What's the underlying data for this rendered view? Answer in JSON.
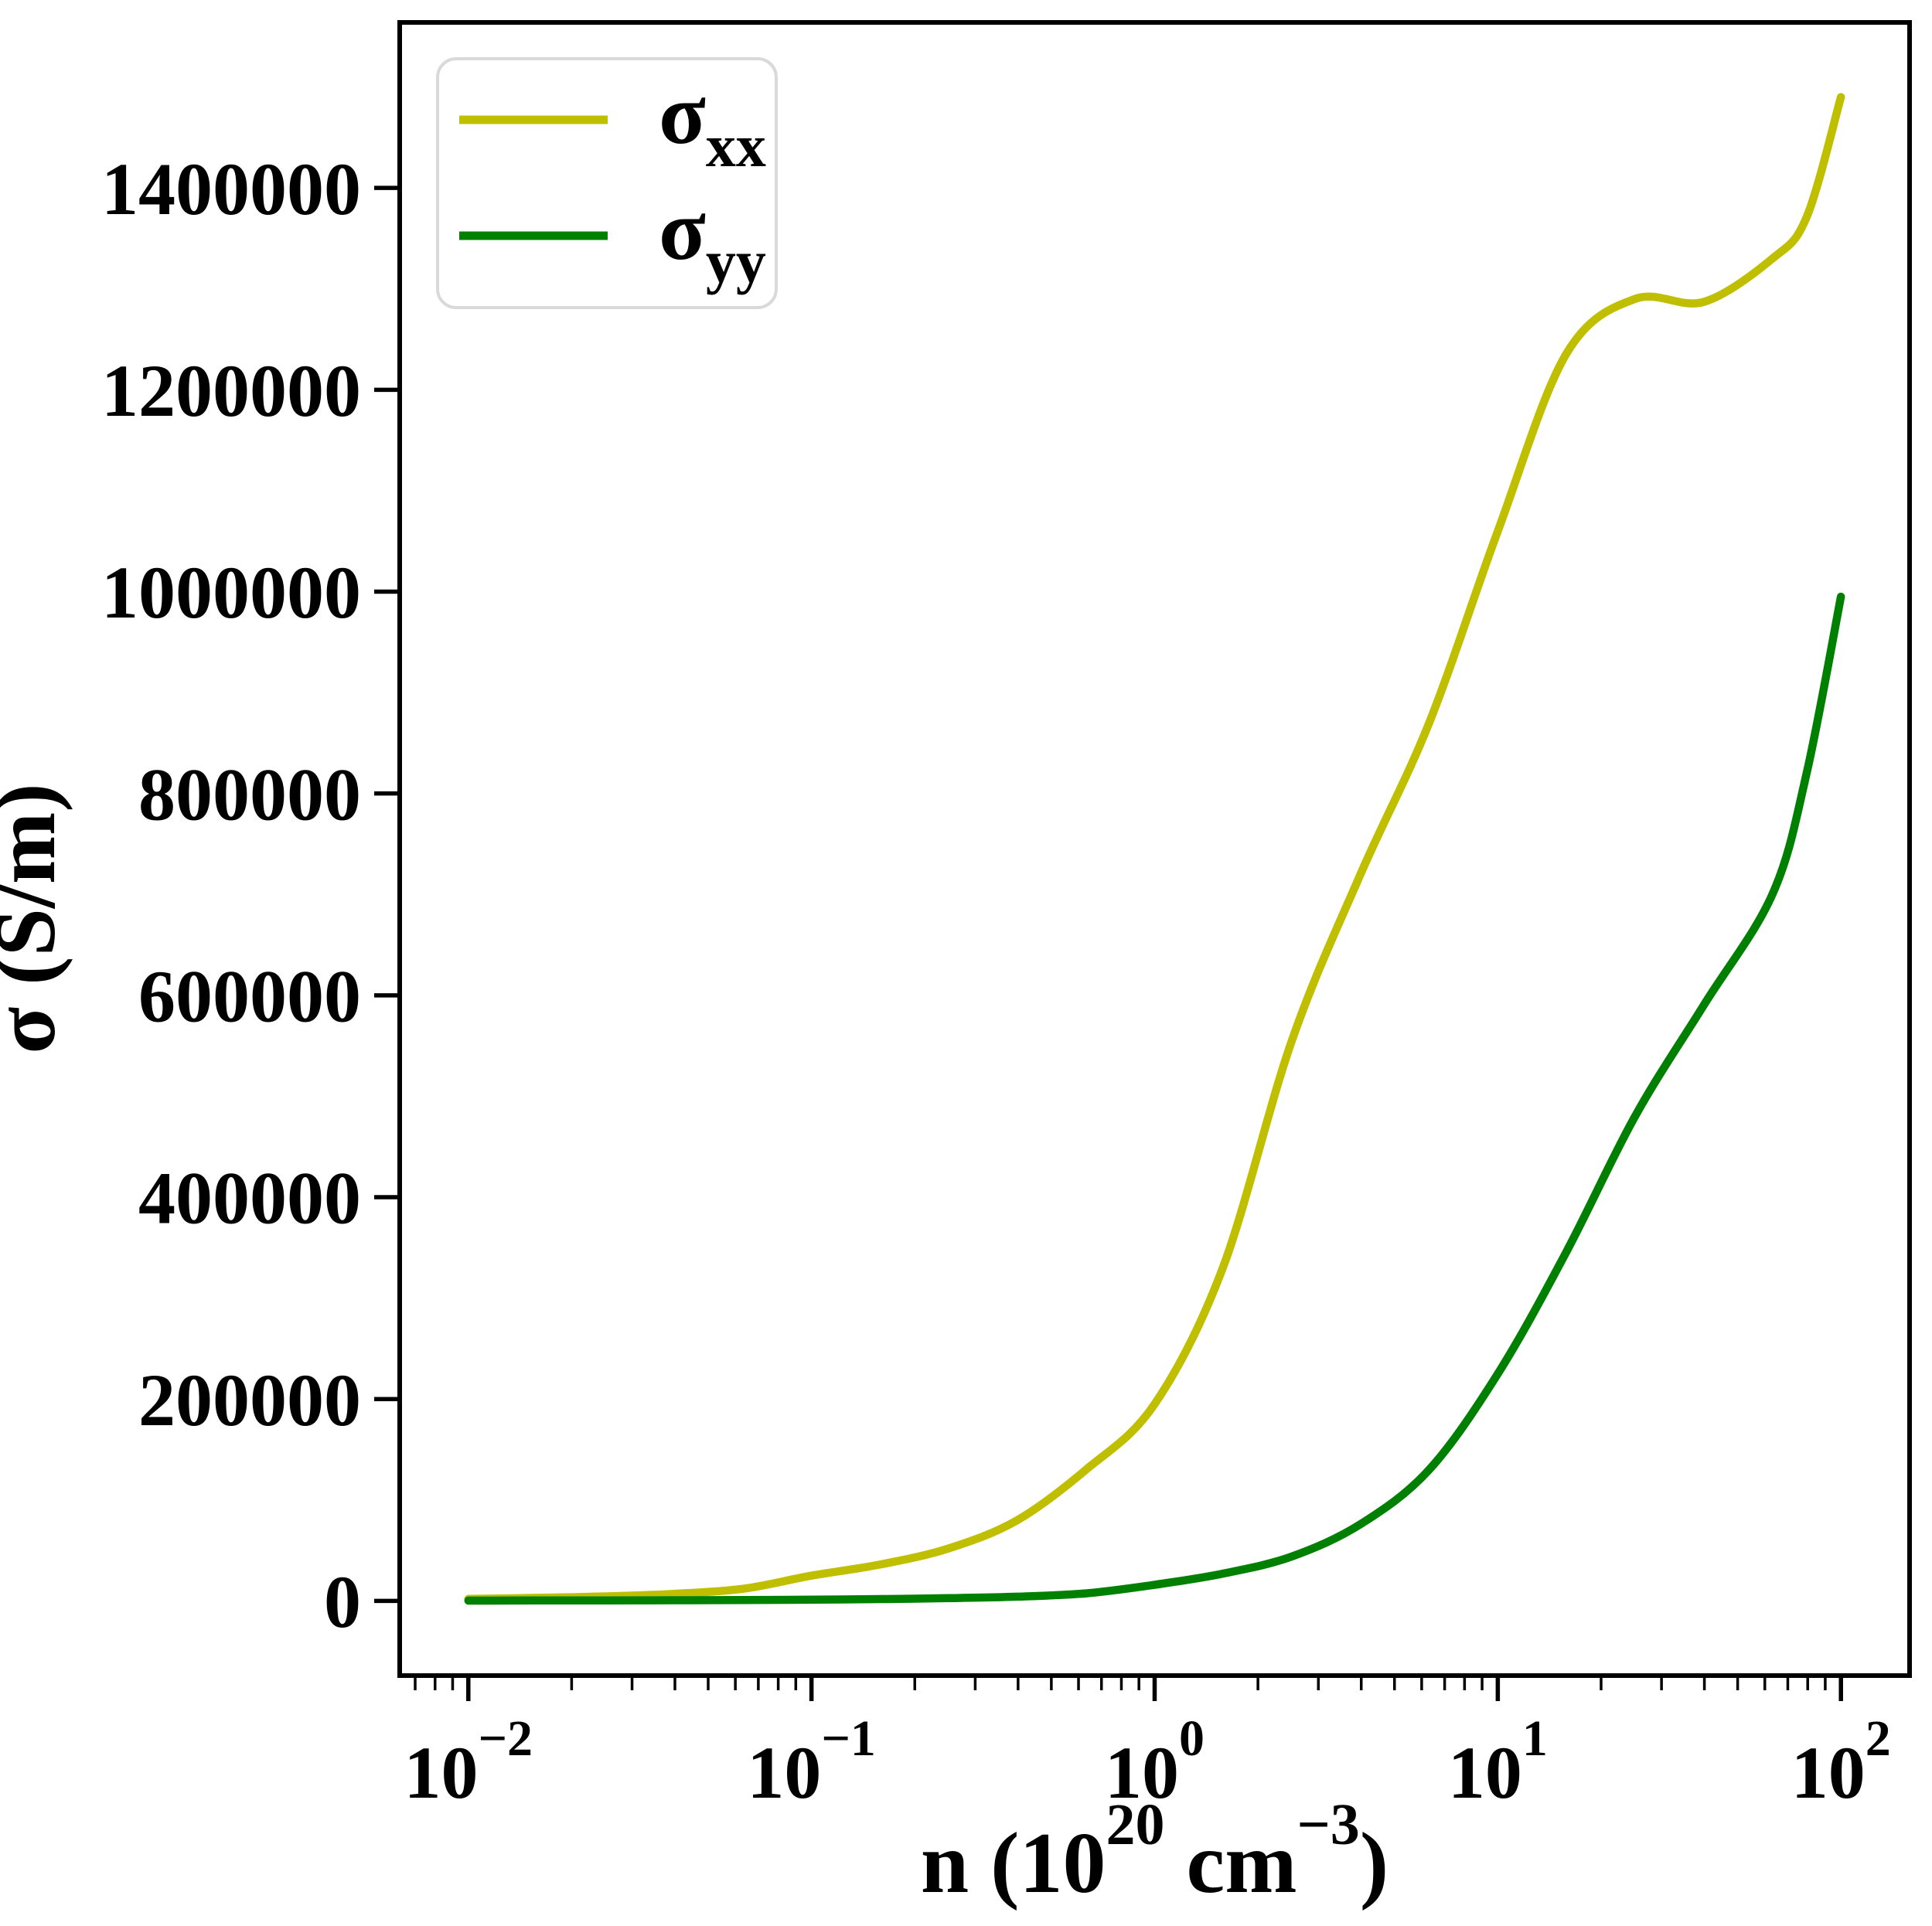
{
  "page": {
    "background": "#ffffff"
  },
  "chart_data": {
    "type": "line",
    "title": "",
    "x_scale": "log",
    "xlabel_plain": "n (10^20 cm^-3)",
    "xlabel_parts": [
      {
        "t": "n (10",
        "sup": false
      },
      {
        "t": "20",
        "sup": true
      },
      {
        "t": " cm",
        "sup": false
      },
      {
        "t": "−3",
        "sup": true
      },
      {
        "t": ")",
        "sup": false
      }
    ],
    "ylabel": "σ (S/m)",
    "xlim_log10": [
      -2.2,
      2.2
    ],
    "ylim": [
      -74000,
      1564000
    ],
    "x_tick_exponents": [
      -2,
      -1,
      0,
      1,
      2
    ],
    "x_tick_labels": [
      {
        "base": "10",
        "exp": "−2"
      },
      {
        "base": "10",
        "exp": "−1"
      },
      {
        "base": "10",
        "exp": "0"
      },
      {
        "base": "10",
        "exp": "1"
      },
      {
        "base": "10",
        "exp": "2"
      }
    ],
    "y_tick_values": [
      0,
      200000,
      400000,
      600000,
      800000,
      1000000,
      1200000,
      1400000
    ],
    "y_tick_labels": [
      "0",
      "200000",
      "400000",
      "600000",
      "800000",
      "1000000",
      "1200000",
      "1400000"
    ],
    "grid": false,
    "axis_color": "#000000",
    "legend": {
      "position": "upper left",
      "border_color": "#d9d9d9",
      "background": "#ffffff",
      "entries": [
        {
          "name": "sigma-xx",
          "label_base": "σ",
          "label_sub": "xx",
          "color": "#bfbf00"
        },
        {
          "name": "sigma-yy",
          "label_base": "σ",
          "label_sub": "yy",
          "color": "#008000"
        }
      ]
    },
    "series": [
      {
        "name": "sigma_xx",
        "color": "#bfbf00",
        "x": [
          0.01,
          0.0158,
          0.0251,
          0.0398,
          0.0631,
          0.1,
          0.158,
          0.251,
          0.398,
          0.631,
          1,
          1.58,
          2.51,
          3.98,
          6.31,
          10,
          15.8,
          25.1,
          39.8,
          63.1,
          79.4,
          100
        ],
        "y": [
          2000,
          3000,
          4500,
          7000,
          12000,
          25000,
          36000,
          52000,
          80000,
          130000,
          195000,
          330000,
          555000,
          720000,
          870000,
          1060000,
          1235000,
          1290000,
          1287000,
          1330000,
          1371000,
          1490000
        ]
      },
      {
        "name": "sigma_yy",
        "color": "#008000",
        "x": [
          0.01,
          0.0158,
          0.0251,
          0.0398,
          0.0631,
          0.1,
          0.158,
          0.251,
          0.398,
          0.631,
          1,
          1.58,
          2.51,
          3.98,
          6.31,
          10,
          15.8,
          25.1,
          39.8,
          63.1,
          79.4,
          100
        ],
        "y": [
          300,
          400,
          500,
          650,
          900,
          1200,
          1800,
          2700,
          4200,
          7500,
          16000,
          27000,
          44000,
          76000,
          130000,
          225000,
          345000,
          480000,
          590000,
          700000,
          820000,
          995000
        ]
      }
    ]
  }
}
